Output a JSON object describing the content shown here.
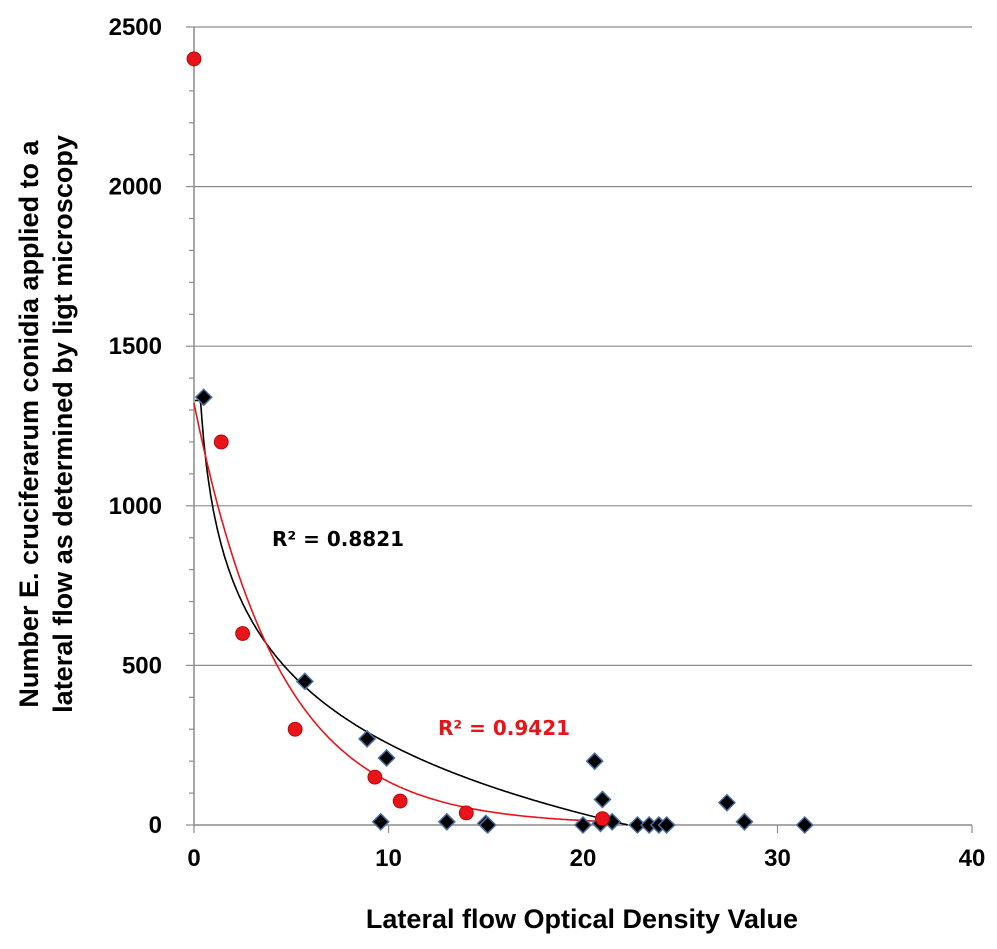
{
  "chart_data": {
    "type": "scatter",
    "xlabel": "Lateral flow Optical Density Value",
    "ylabel_lines": [
      "Number E. cruciferarum conidia applied to a",
      "lateral flow as  determined by ligt microscopy"
    ],
    "xlim": [
      0,
      40
    ],
    "ylim": [
      0,
      2500
    ],
    "x_ticks": [
      0,
      10,
      20,
      30,
      40
    ],
    "y_ticks": [
      0,
      500,
      1000,
      1500,
      2000,
      2500
    ],
    "grid": "horizontal",
    "series": [
      {
        "marker": "diamond",
        "color": "#000000",
        "edge_color": "#4a6fa5",
        "trend_color": "#000000",
        "r2_label": "R² = 0.8821",
        "points": [
          [
            0.5,
            1340
          ],
          [
            5.7,
            450
          ],
          [
            8.9,
            270
          ],
          [
            9.9,
            210
          ],
          [
            9.6,
            10
          ],
          [
            13.0,
            10
          ],
          [
            15.0,
            5
          ],
          [
            15.1,
            0
          ],
          [
            20.0,
            0
          ],
          [
            20.6,
            200
          ],
          [
            21.0,
            80
          ],
          [
            20.9,
            5
          ],
          [
            21.5,
            10
          ],
          [
            22.8,
            0
          ],
          [
            23.4,
            0
          ],
          [
            23.9,
            0
          ],
          [
            24.3,
            0
          ],
          [
            27.4,
            70
          ],
          [
            28.3,
            10
          ],
          [
            31.4,
            0
          ]
        ]
      },
      {
        "marker": "circle",
        "color": "#e8141a",
        "trend_color": "#e8141a",
        "r2_label": "R² = 0.9421",
        "points": [
          [
            0.0,
            2400
          ],
          [
            1.4,
            1200
          ],
          [
            2.5,
            600
          ],
          [
            5.2,
            300
          ],
          [
            9.3,
            150
          ],
          [
            10.6,
            75
          ],
          [
            14.0,
            38
          ],
          [
            21.0,
            20
          ]
        ]
      }
    ]
  }
}
